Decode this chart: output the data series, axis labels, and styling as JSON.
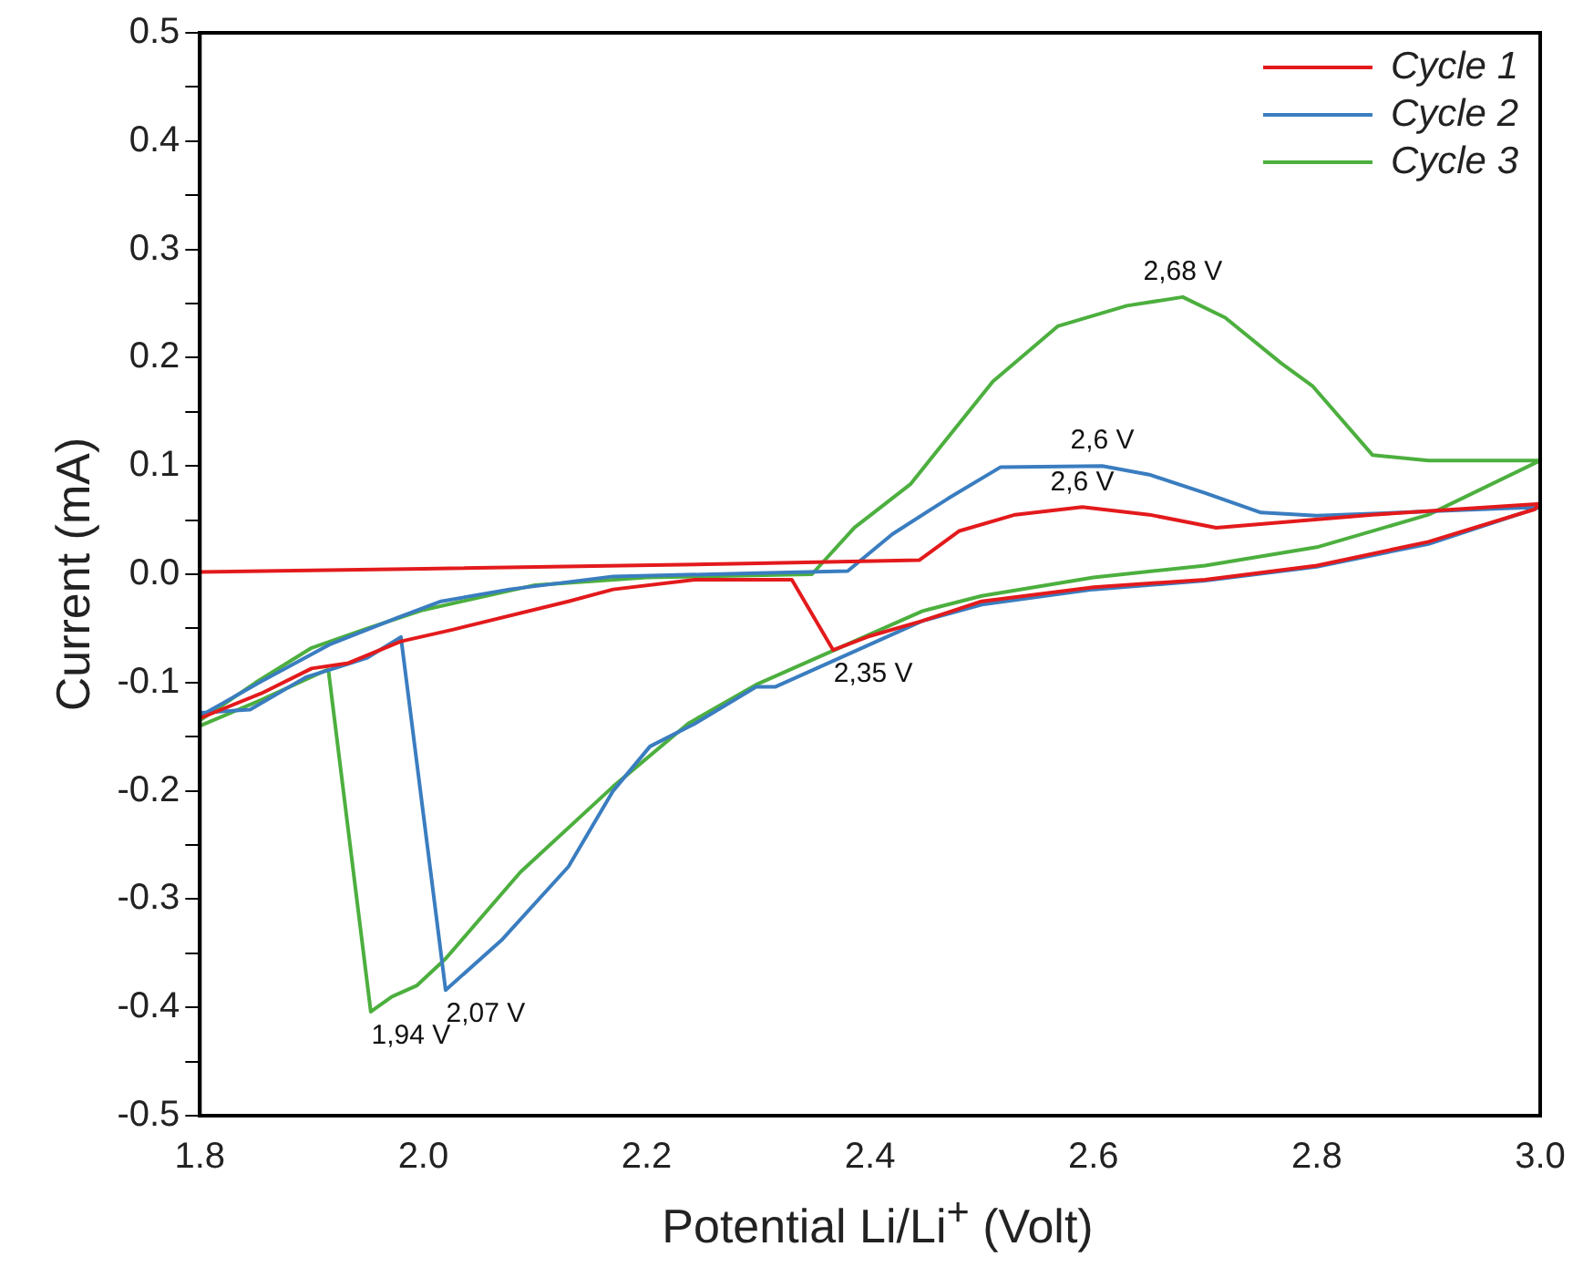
{
  "chart_data": {
    "type": "line",
    "xlabel": "Potential Li/Li$^{+}$ (Volt)",
    "ylabel": "Current (mA)",
    "xlim": [
      1.8,
      3.0
    ],
    "ylim": [
      -0.5,
      0.5
    ],
    "xticks": [
      1.8,
      {
        "value": 2,
        "label": "2.0"
      },
      2.2,
      2.4,
      2.6,
      2.8,
      {
        "value": 3,
        "label": "3.0"
      }
    ],
    "yticks": [
      -0.5,
      {
        "value": -0.45,
        "label": null
      },
      -0.4,
      {
        "value": -0.35,
        "label": null
      },
      -0.3,
      {
        "value": -0.25,
        "label": null
      },
      -0.2,
      {
        "value": -0.15,
        "label": null
      },
      -0.1,
      {
        "value": -0.05,
        "label": null
      },
      {
        "value": 0,
        "label": "0.0"
      },
      {
        "value": 0.05,
        "label": null
      },
      0.1,
      {
        "value": 0.15,
        "label": null
      },
      0.2,
      {
        "value": 0.25,
        "label": null
      },
      0.3,
      {
        "value": 0.35,
        "label": null
      },
      0.4,
      {
        "value": 0.45,
        "label": null
      },
      0.5
    ],
    "grid": false,
    "legend": "top right",
    "marker": "none",
    "line_style": "solid",
    "series": [
      {
        "name": "Cycle 1",
        "color": "#e31a1c",
        "x": [
          1.8,
          1.855,
          1.9,
          1.933,
          1.98,
          2.027,
          2.13,
          2.17,
          2.243,
          2.33,
          2.367,
          2.4,
          2.447,
          2.5,
          2.6,
          2.7,
          2.8,
          2.9,
          2.995,
          3.0,
          2.85,
          2.71,
          2.65,
          2.59,
          2.53,
          2.48,
          2.444,
          2.3,
          2.0,
          1.8
        ],
        "values": [
          -0.133,
          -0.11,
          -0.087,
          -0.082,
          -0.062,
          -0.051,
          -0.025,
          -0.014,
          -0.005,
          -0.005,
          -0.07,
          -0.057,
          -0.043,
          -0.025,
          -0.012,
          -0.005,
          0.008,
          0.03,
          0.06,
          0.065,
          0.055,
          0.043,
          0.055,
          0.062,
          0.055,
          0.04,
          0.013,
          0.01,
          0.005,
          0.002
        ]
      },
      {
        "name": "Cycle 2",
        "color": "#3a7dc0",
        "x": [
          1.8,
          1.845,
          1.895,
          1.92,
          1.95,
          1.98,
          2.02,
          2.07,
          2.13,
          2.17,
          2.203,
          2.243,
          2.298,
          2.315,
          2.447,
          2.5,
          2.6,
          2.7,
          2.8,
          2.9,
          3.0,
          2.9,
          2.8,
          2.75,
          2.7,
          2.65,
          2.608,
          2.517,
          2.47,
          2.42,
          2.38,
          2.3,
          2.17,
          2.077,
          2.016,
          1.977,
          1.916,
          1.855,
          1.8
        ],
        "values": [
          -0.128,
          -0.125,
          -0.095,
          -0.087,
          -0.077,
          -0.058,
          -0.384,
          -0.338,
          -0.27,
          -0.2,
          -0.159,
          -0.138,
          -0.104,
          -0.104,
          -0.043,
          -0.028,
          -0.014,
          -0.006,
          0.007,
          0.028,
          0.062,
          0.058,
          0.054,
          0.057,
          0.075,
          0.092,
          0.1,
          0.099,
          0.07,
          0.037,
          0.003,
          0.001,
          -0.002,
          -0.014,
          -0.025,
          -0.04,
          -0.065,
          -0.099,
          -0.131
        ]
      },
      {
        "name": "Cycle 3",
        "color": "#4caf3e",
        "x": [
          1.8,
          1.855,
          1.91,
          1.915,
          1.953,
          1.972,
          1.994,
          2.02,
          2.087,
          2.17,
          2.237,
          2.298,
          2.447,
          2.5,
          2.6,
          2.7,
          2.8,
          2.9,
          3.0,
          2.95,
          2.9,
          2.85,
          2.796,
          2.768,
          2.718,
          2.68,
          2.63,
          2.568,
          2.51,
          2.436,
          2.386,
          2.348,
          2.2,
          2.1,
          2.0,
          1.95,
          1.9,
          1.85,
          1.8
        ],
        "values": [
          -0.14,
          -0.116,
          -0.09,
          -0.088,
          -0.404,
          -0.39,
          -0.38,
          -0.355,
          -0.275,
          -0.196,
          -0.138,
          -0.102,
          -0.034,
          -0.02,
          -0.003,
          0.008,
          0.025,
          0.055,
          0.105,
          0.105,
          0.105,
          0.11,
          0.174,
          0.195,
          0.237,
          0.256,
          0.248,
          0.229,
          0.178,
          0.083,
          0.043,
          0.0,
          -0.003,
          -0.01,
          -0.033,
          -0.05,
          -0.068,
          -0.1,
          -0.135
        ]
      }
    ],
    "annotations": [
      {
        "text": "2,68 V",
        "x": 2.68,
        "y": 0.256
      },
      {
        "text": "2,6 V",
        "x": 2.608,
        "y": 0.1
      },
      {
        "text": "2,6 V",
        "x": 2.59,
        "y": 0.062
      },
      {
        "text": "2,35 V",
        "x": 2.367,
        "y": -0.07
      },
      {
        "text": "2,07 V",
        "x": 2.02,
        "y": -0.384
      },
      {
        "text": "1,94 V",
        "x": 1.953,
        "y": -0.404
      }
    ]
  }
}
